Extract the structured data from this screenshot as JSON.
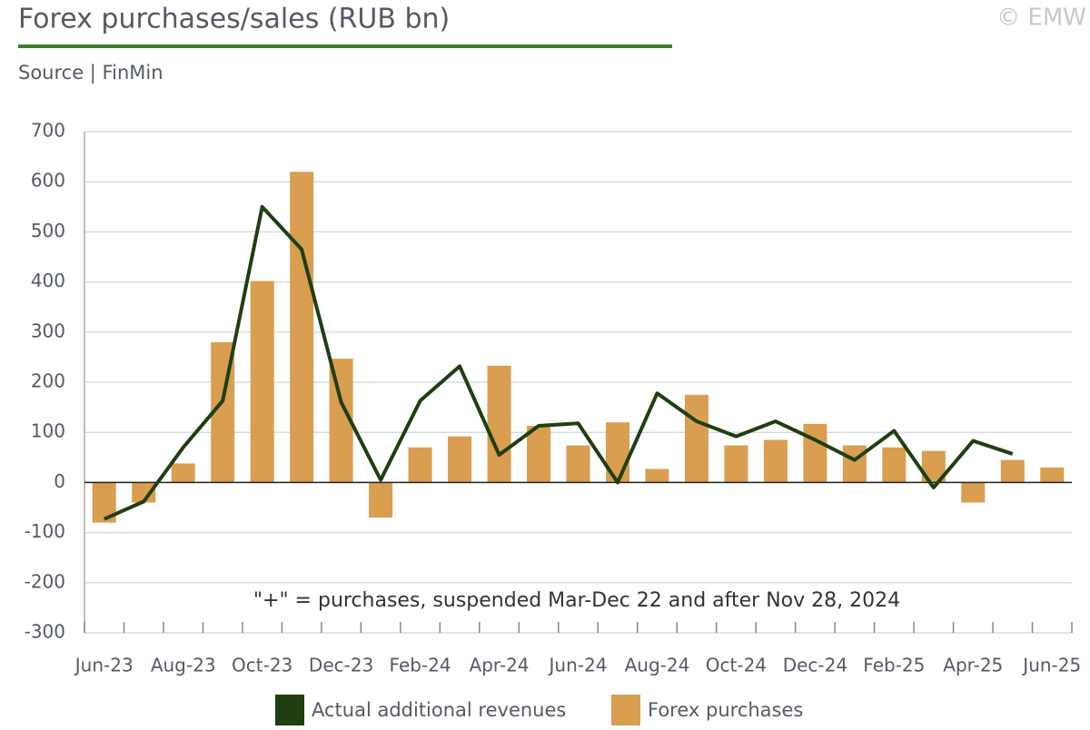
{
  "chart_data": {
    "type": "bar_line",
    "title": "Forex purchases/sales (RUB bn)",
    "subtitle": "Source | FinMin",
    "credit": "© EMW",
    "annotation": "\"+\" = purchases, suspended Mar-Dec 22 and after Nov 28, 2024",
    "categories": [
      "Jun-23",
      null,
      "Aug-23",
      null,
      "Oct-23",
      null,
      "Dec-23",
      null,
      "Feb-24",
      null,
      "Apr-24",
      null,
      "Jun-24",
      null,
      "Aug-24",
      null,
      "Oct-24",
      null,
      "Dec-24",
      null,
      "Feb-25",
      null,
      "Apr-25",
      null,
      "Jun-25"
    ],
    "series": [
      {
        "name": "Actual additional revenues",
        "type": "line",
        "color": "#1f3f10",
        "values": [
          -73,
          -38,
          70,
          163,
          550,
          465,
          160,
          5,
          163,
          232,
          55,
          113,
          118,
          0,
          178,
          122,
          92,
          122,
          85,
          45,
          103,
          -10,
          83,
          57,
          null
        ]
      },
      {
        "name": "Forex purchases",
        "type": "bar",
        "color": "#d99e50",
        "values": [
          -80,
          -40,
          38,
          280,
          402,
          620,
          247,
          -70,
          70,
          92,
          233,
          113,
          74,
          120,
          27,
          175,
          74,
          85,
          117,
          74,
          70,
          63,
          -40,
          45,
          30
        ]
      }
    ],
    "ylim": [
      -300,
      700
    ],
    "yticks": [
      -300,
      -200,
      -100,
      0,
      100,
      200,
      300,
      400,
      500,
      600,
      700
    ],
    "grid": true
  }
}
